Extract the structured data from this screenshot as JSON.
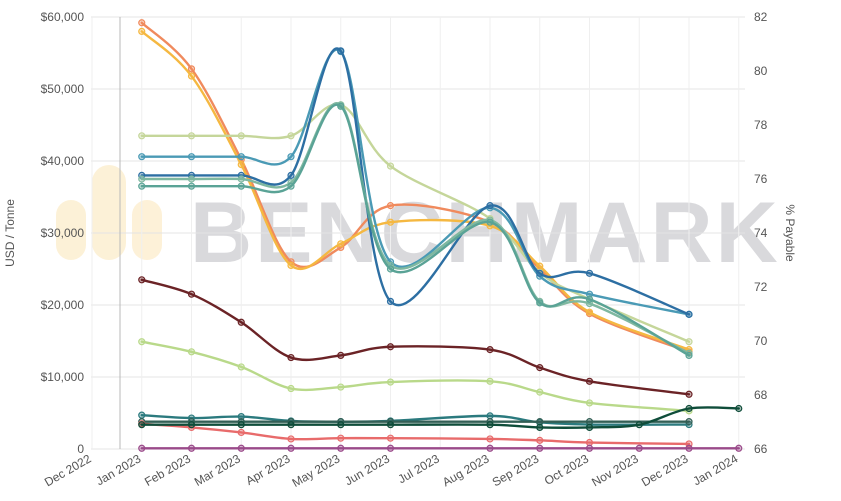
{
  "chart_data": {
    "type": "line",
    "ylabel": "USD / Tonne",
    "y2label": "% Payable",
    "watermark": "BENCHMARK",
    "x_ticks": [
      "Dec 2022",
      "Jan 2023",
      "Feb 2023",
      "Mar 2023",
      "Apr 2023",
      "May 2023",
      "Jun 2023",
      "Jul 2023",
      "Aug 2023",
      "Sep 2023",
      "Oct 2023",
      "Nov 2023",
      "Dec 2023",
      "Jan 2024"
    ],
    "y_ticks": [
      "0",
      "$10,000",
      "$20,000",
      "$30,000",
      "$40,000",
      "$50,000",
      "$60,000"
    ],
    "y2_ticks": [
      "66",
      "68",
      "70",
      "72",
      "74",
      "76",
      "78",
      "80",
      "82"
    ],
    "ylim": [
      0,
      60000
    ],
    "y2lim": [
      66,
      82
    ],
    "grid": true,
    "series": [
      {
        "color": "#f08a5d",
        "axis": "left",
        "x": [
          "Jan 2023",
          "Feb 2023",
          "Mar 2023",
          "Apr 2023",
          "May 2023",
          "Jun 2023",
          "Aug 2023",
          "Sep 2023",
          "Oct 2023",
          "Dec 2023"
        ],
        "values": [
          59200,
          52800,
          40200,
          26000,
          28000,
          33800,
          31500,
          25000,
          18800,
          13500
        ]
      },
      {
        "color": "#f5b841",
        "axis": "left",
        "x": [
          "Jan 2023",
          "Feb 2023",
          "Mar 2023",
          "Apr 2023",
          "May 2023",
          "Jun 2023",
          "Aug 2023",
          "Sep 2023",
          "Oct 2023",
          "Dec 2023"
        ],
        "values": [
          58000,
          51800,
          39500,
          25500,
          28500,
          31500,
          31000,
          25400,
          19000,
          13800
        ]
      },
      {
        "color": "#c5d69a",
        "axis": "left",
        "x": [
          "Jan 2023",
          "Feb 2023",
          "Mar 2023",
          "Apr 2023",
          "May 2023",
          "Jun 2023",
          "Aug 2023",
          "Sep 2023",
          "Oct 2023",
          "Dec 2023"
        ],
        "values": [
          43500,
          43500,
          43500,
          43500,
          47800,
          39300,
          32000,
          24500,
          20800,
          14900
        ]
      },
      {
        "color": "#4a9ab5",
        "axis": "left",
        "x": [
          "Jan 2023",
          "Feb 2023",
          "Mar 2023",
          "Apr 2023",
          "May 2023",
          "Jun 2023",
          "Aug 2023",
          "Sep 2023",
          "Oct 2023",
          "Dec 2023"
        ],
        "values": [
          40600,
          40600,
          40600,
          40600,
          55200,
          26000,
          33500,
          24000,
          21500,
          18700
        ]
      },
      {
        "color": "#2d6fa3",
        "axis": "left",
        "x": [
          "Jan 2023",
          "Feb 2023",
          "Mar 2023",
          "Apr 2023",
          "May 2023",
          "Jun 2023",
          "Aug 2023",
          "Sep 2023",
          "Oct 2023",
          "Dec 2023"
        ],
        "values": [
          38000,
          38000,
          38000,
          38000,
          55300,
          20500,
          33800,
          24400,
          24400,
          18700
        ]
      },
      {
        "color": "#7fb8a0",
        "axis": "left",
        "x": [
          "Jan 2023",
          "Feb 2023",
          "Mar 2023",
          "Apr 2023",
          "May 2023",
          "Jun 2023",
          "Aug 2023",
          "Sep 2023",
          "Oct 2023",
          "Dec 2023"
        ],
        "values": [
          37500,
          37500,
          37500,
          37000,
          47800,
          25500,
          31800,
          20500,
          20200,
          13300
        ]
      },
      {
        "color": "#5aa396",
        "axis": "left",
        "x": [
          "Jan 2023",
          "Feb 2023",
          "Mar 2023",
          "Apr 2023",
          "May 2023",
          "Jun 2023",
          "Aug 2023",
          "Sep 2023",
          "Oct 2023",
          "Dec 2023"
        ],
        "values": [
          36500,
          36500,
          36500,
          36500,
          47600,
          25000,
          31500,
          20300,
          20800,
          13000
        ]
      },
      {
        "color": "#6b2326",
        "axis": "left",
        "x": [
          "Jan 2023",
          "Feb 2023",
          "Mar 2023",
          "Apr 2023",
          "May 2023",
          "Jun 2023",
          "Aug 2023",
          "Sep 2023",
          "Oct 2023",
          "Dec 2023"
        ],
        "values": [
          23500,
          21500,
          17600,
          12700,
          13000,
          14200,
          13800,
          11300,
          9400,
          7600
        ]
      },
      {
        "color": "#b9d98a",
        "axis": "left",
        "x": [
          "Jan 2023",
          "Feb 2023",
          "Mar 2023",
          "Apr 2023",
          "May 2023",
          "Jun 2023",
          "Aug 2023",
          "Sep 2023",
          "Oct 2023",
          "Dec 2023"
        ],
        "values": [
          14900,
          13500,
          11400,
          8400,
          8600,
          9300,
          9400,
          7900,
          6400,
          5300
        ]
      },
      {
        "color": "#2b7a7e",
        "axis": "left",
        "x": [
          "Jan 2023",
          "Feb 2023",
          "Mar 2023",
          "Apr 2023",
          "May 2023",
          "Jun 2023",
          "Aug 2023",
          "Sep 2023",
          "Oct 2023",
          "Dec 2023"
        ],
        "values": [
          4700,
          4300,
          4500,
          3900,
          3800,
          3900,
          4600,
          3700,
          3400,
          3400
        ]
      },
      {
        "color": "#335f55",
        "axis": "left",
        "x": [
          "Jan 2023",
          "Feb 2023",
          "Mar 2023",
          "Apr 2023",
          "May 2023",
          "Jun 2023",
          "Aug 2023",
          "Sep 2023",
          "Oct 2023",
          "Dec 2023"
        ],
        "values": [
          3800,
          3800,
          3800,
          3800,
          3800,
          3800,
          3800,
          3800,
          3800,
          3800
        ]
      },
      {
        "color": "#e86b6b",
        "axis": "left",
        "x": [
          "Jan 2023",
          "Feb 2023",
          "Mar 2023",
          "Apr 2023",
          "May 2023",
          "Jun 2023",
          "Aug 2023",
          "Sep 2023",
          "Oct 2023",
          "Dec 2023"
        ],
        "values": [
          3500,
          3000,
          2300,
          1400,
          1500,
          1500,
          1400,
          1200,
          900,
          700
        ]
      },
      {
        "color": "#9a4a8a",
        "axis": "left",
        "x": [
          "Jan 2023",
          "Feb 2023",
          "Mar 2023",
          "Apr 2023",
          "May 2023",
          "Jun 2023",
          "Aug 2023",
          "Sep 2023",
          "Oct 2023",
          "Nov 2023",
          "Dec 2023",
          "Jan 2024"
        ],
        "values": [
          100,
          100,
          100,
          100,
          100,
          100,
          100,
          100,
          100,
          100,
          100,
          100
        ]
      },
      {
        "color": "#0f4d3a",
        "axis": "right",
        "x": [
          "Jan 2023",
          "Feb 2023",
          "Mar 2023",
          "Apr 2023",
          "May 2023",
          "Jun 2023",
          "Aug 2023",
          "Sep 2023",
          "Oct 2023",
          "Nov 2023",
          "Dec 2023",
          "Jan 2024"
        ],
        "values": [
          66.9,
          66.9,
          66.9,
          66.9,
          66.9,
          66.9,
          66.9,
          66.8,
          66.8,
          66.9,
          67.5,
          67.5
        ]
      }
    ]
  }
}
